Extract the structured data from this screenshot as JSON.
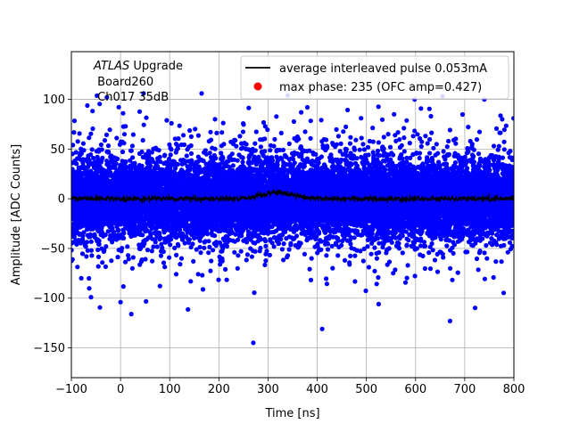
{
  "chart_data": {
    "type": "scatter",
    "xlabel": "Time [ns]",
    "ylabel": "Amplitude [ADC Counts]",
    "xlim": [
      -100,
      800
    ],
    "ylim": [
      -180,
      148
    ],
    "xticks": [
      -100,
      0,
      100,
      200,
      300,
      400,
      500,
      600,
      700,
      800
    ],
    "yticks": [
      -150,
      -100,
      -50,
      0,
      50,
      100
    ],
    "grid": true,
    "legend_position": "top-right",
    "annotation": {
      "experiment": "ATLAS",
      "experiment_suffix": " Upgrade",
      "board": " Board260",
      "channel": " Ch017 35dB"
    },
    "series": [
      {
        "name": "average interleaved pulse 0.053mA",
        "kind": "line",
        "color": "#000000",
        "x_range": [
          -100,
          800
        ],
        "baseline": 0,
        "bump_center": 320,
        "bump_amplitude": 6,
        "noise_amplitude": 2.5,
        "points": 1800
      },
      {
        "name": "max phase: 235 (OFC amp=0.427)",
        "kind": "scatter",
        "color": "#0000ff",
        "legend_color": "#ff0000",
        "x_range": [
          -100,
          800
        ],
        "n_points": 15000,
        "core_sigma": 16,
        "outlier_points": [
          {
            "x": 0,
            "y": -104
          },
          {
            "x": 22,
            "y": -116
          },
          {
            "x": 270,
            "y": -145
          },
          {
            "x": 410,
            "y": -131
          },
          {
            "x": 525,
            "y": -106
          },
          {
            "x": 670,
            "y": -123
          },
          {
            "x": -60,
            "y": -99
          },
          {
            "x": 340,
            "y": 104
          },
          {
            "x": 165,
            "y": 106
          },
          {
            "x": 655,
            "y": 103
          },
          {
            "x": 740,
            "y": 100
          },
          {
            "x": 598,
            "y": 100
          },
          {
            "x": 380,
            "y": 92
          }
        ]
      }
    ]
  }
}
